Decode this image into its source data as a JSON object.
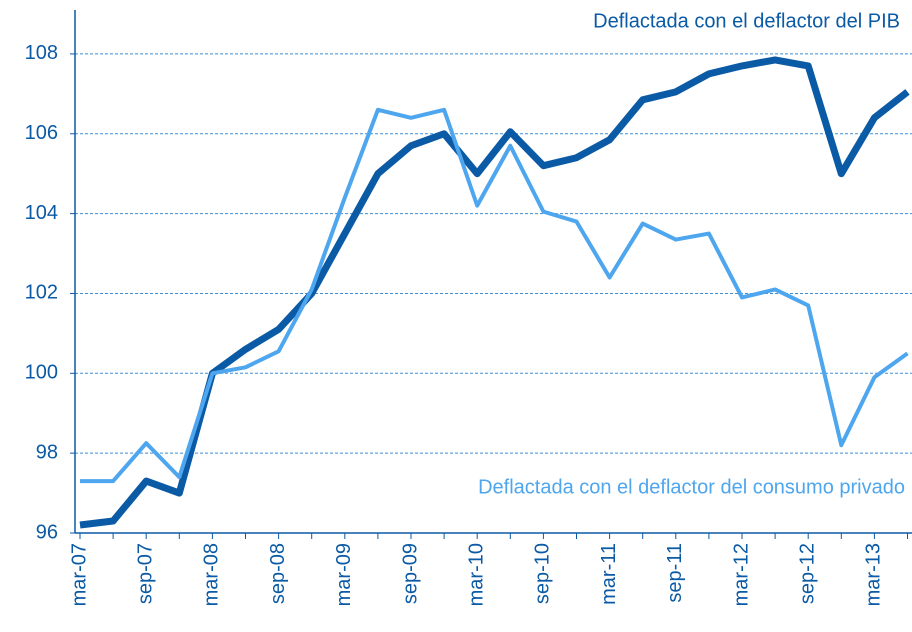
{
  "chart_data": {
    "type": "line",
    "categories": [
      "mar-07",
      null,
      "sep-07",
      null,
      "mar-08",
      null,
      "sep-08",
      null,
      "mar-09",
      null,
      "sep-09",
      null,
      "mar-10",
      null,
      "sep-10",
      null,
      "mar-11",
      null,
      "sep-11",
      null,
      "mar-12",
      null,
      "sep-12",
      null,
      "mar-13",
      null
    ],
    "series": [
      {
        "name": "Deflactada con el deflactor del PIB",
        "color": "#0b5aa5",
        "values": [
          96.2,
          96.3,
          97.3,
          97.0,
          100.0,
          100.6,
          101.1,
          102.0,
          103.5,
          105.0,
          105.7,
          106.0,
          105.0,
          106.05,
          105.2,
          105.4,
          105.85,
          106.85,
          107.05,
          107.5,
          107.7,
          107.85,
          107.7,
          105.0,
          106.4,
          107.05
        ]
      },
      {
        "name": "Deflactada con el deflactor del consumo privado",
        "color": "#4ea6ee",
        "values": [
          97.3,
          97.3,
          98.25,
          97.4,
          100.0,
          100.15,
          100.55,
          102.1,
          104.4,
          106.6,
          106.4,
          106.6,
          104.2,
          105.7,
          104.05,
          103.8,
          102.4,
          103.75,
          103.35,
          103.5,
          101.9,
          102.1,
          101.7,
          98.2,
          99.9,
          100.5
        ]
      }
    ],
    "ylim": [
      96,
      109.1
    ],
    "yticks": [
      96,
      98,
      100,
      102,
      104,
      106,
      108
    ],
    "grid": true
  }
}
